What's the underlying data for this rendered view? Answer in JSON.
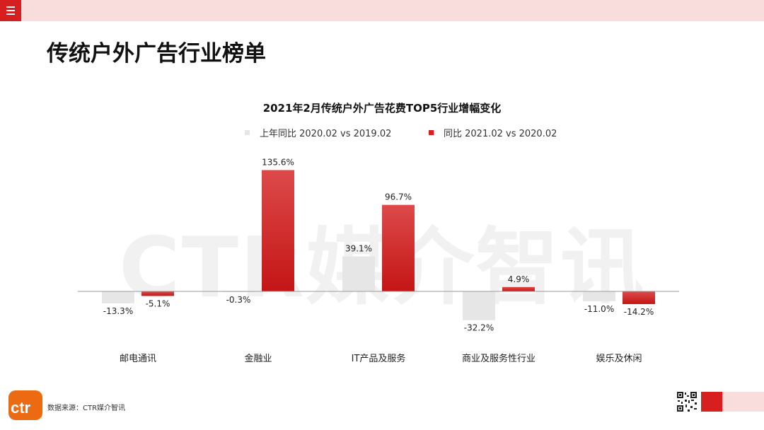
{
  "header": {
    "menu_icon": "hamburger-menu-icon"
  },
  "page": {
    "title": "传统户外广告行业榜单"
  },
  "watermark": "CTR媒介智讯",
  "chart_data": {
    "type": "bar",
    "title": "2021年2月传统户外广告花费TOP5行业增幅变化",
    "categories": [
      "邮电通讯",
      "金融业",
      "IT产品及服务",
      "商业及服务性行业",
      "娱乐及休闲"
    ],
    "series": [
      {
        "name": "上年同比 2020.02 vs 2019.02",
        "color": "#e6e6e6",
        "values": [
          -13.3,
          -0.3,
          39.1,
          -32.2,
          -11.0
        ],
        "labels": [
          "-13.3%",
          "-0.3%",
          "39.1%",
          "-32.2%",
          "-11.0%"
        ]
      },
      {
        "name": "同比 2021.02 vs 2020.02",
        "color": "#d71f1f",
        "values": [
          -5.1,
          135.6,
          96.7,
          4.9,
          -14.2
        ],
        "labels": [
          "-5.1%",
          "135.6%",
          "96.7%",
          "4.9%",
          "-14.2%"
        ]
      }
    ],
    "legend_position": "top",
    "grid": false
  },
  "footer": {
    "logo_text": "ctr",
    "source": "数据来源：CTR媒介智讯"
  },
  "colors": {
    "accent": "#d71f1f",
    "light": "#f9dcdc",
    "prior": "#e6e6e6"
  }
}
